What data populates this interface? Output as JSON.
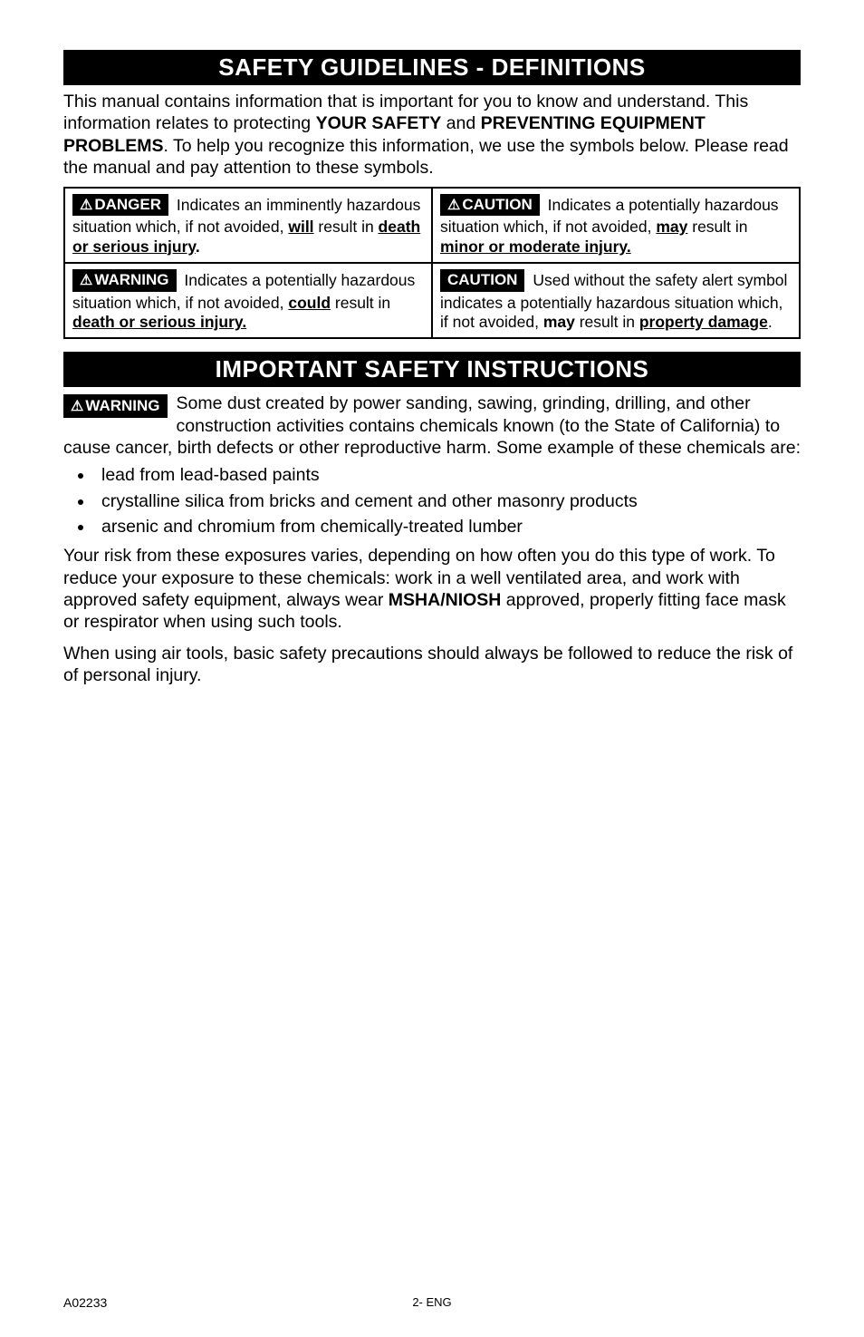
{
  "colors": {
    "bg": "#ffffff",
    "text": "#000000",
    "badge_bg": "#000000",
    "badge_fg": "#ffffff",
    "border": "#000000"
  },
  "typography": {
    "body_fontsize_pt": 15,
    "header_fontsize_pt": 20,
    "footer_fontsize_pt": 10,
    "font_family": "Arial"
  },
  "section1": {
    "header": "SAFETY GUIDELINES - DEFINITIONS",
    "intro_html": "This manual contains information that is important for you to know and understand. This information relates to protecting <b>YOUR SAFETY</b> and <b>PREVENTING EQUIPMENT PROBLEMS</b>. To help you recognize this information, we use the symbols below. Please read the manual and pay attention to these symbols."
  },
  "definitions": {
    "danger": {
      "badge": "DANGER",
      "has_triangle": true,
      "text_html": "Indicates an imminently hazardous situation which, if not avoided, <b><u>will</u></b> result in <b><u>death or serious injury</u>.</b>"
    },
    "caution_tri": {
      "badge": "CAUTION",
      "has_triangle": true,
      "text_html": "Indicates a potentially hazardous situation which, if not avoided, <b><u>may</u></b> result in <b><u>minor or moderate injury.</u></b>"
    },
    "warning": {
      "badge": "WARNING",
      "has_triangle": true,
      "text_html": "Indicates a potentially hazardous situation which, if not avoided, <b><u>could</u></b> result in <b><u>death or serious injury.</u></b>"
    },
    "caution_plain": {
      "badge": "CAUTION",
      "has_triangle": false,
      "text_html": "Used without the safety alert symbol indicates a potentially hazardous situation which, if not avoided, <b>may</b> result in <b><u>property damage</u></b>."
    }
  },
  "section2": {
    "header": "IMPORTANT SAFETY INSTRUCTIONS",
    "badge": "WARNING",
    "badge_has_triangle": true,
    "para1": "Some dust created by power sanding, sawing, grinding, drilling, and other construction activities contains chemicals known (to the State of California) to cause cancer, birth defects or other reproductive harm. Some example of these chemicals are:",
    "bullets": [
      "lead from lead-based paints",
      "crystalline silica from bricks and cement and other masonry products",
      "arsenic and chromium from chemically-treated lumber"
    ],
    "para2_html": "Your risk from these exposures varies, depending on how often you do this type of work. To reduce your exposure to these chemicals: work in a well ventilated area, and work with approved safety equipment, always wear <b>MSHA/NIOSH</b> approved, properly fitting face mask or respirator when using such tools.",
    "para3": "When using air tools, basic safety precautions should always be followed to reduce the risk of of personal injury."
  },
  "footer": {
    "left": "A02233",
    "center": "2- ENG"
  }
}
